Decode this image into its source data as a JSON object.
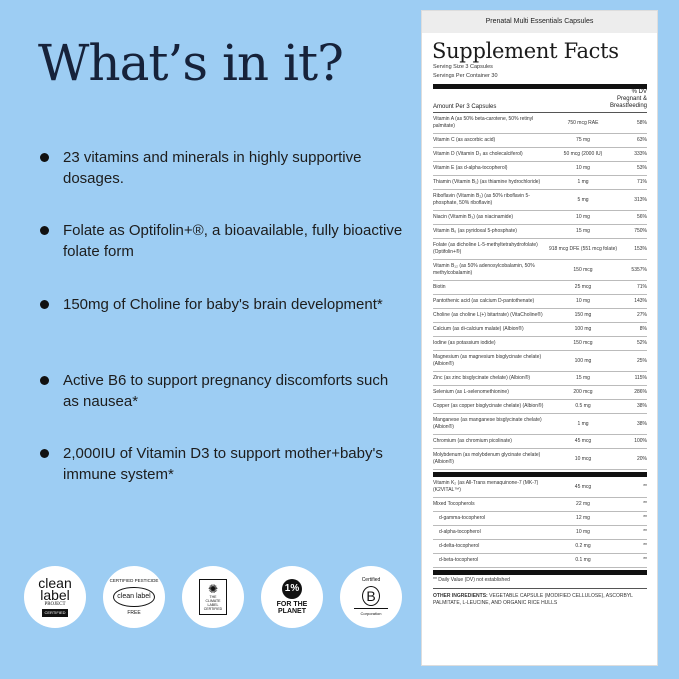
{
  "heading": "What’s in it?",
  "bullets": [
    "23 vitamins and minerals in highly supportive dosages.",
    "Folate as Optifolin+®, a bioavailable, fully bioactive folate form",
    "150mg of Choline for baby's brain development*",
    "Active B6 to support pregnancy discomforts such as nausea*",
    "2,000IU of Vitamin D3 to support mother+baby's immune system*"
  ],
  "logos": [
    {
      "name": "clean label project certified",
      "lines": [
        "clean",
        "label",
        "PROJECT",
        "CERTIFIED"
      ]
    },
    {
      "name": "certified pesticide free",
      "lines": [
        "CERTIFIED PESTICIDE",
        "clean label",
        "FREE"
      ]
    },
    {
      "name": "the climate label certified",
      "lines": [
        "THE",
        "CLIMATE",
        "LABEL",
        "CERTIFIED"
      ]
    },
    {
      "name": "1% for the planet",
      "lines": [
        "1%",
        "FOR THE",
        "PLANET"
      ]
    },
    {
      "name": "certified b corporation",
      "lines": [
        "Certified",
        "B",
        "Corporation"
      ]
    }
  ],
  "label": {
    "product": "Prenatal Multi Essentials Capsules",
    "title": "Supplement Facts",
    "serving_size": "Serving Size 3 Capsules",
    "servings_per_container": "Servings Per Container 30",
    "amount_header": "Amount Per 3 Capsules",
    "dv_header": [
      "% DV",
      "Pregnant &",
      "Breastfeeding"
    ],
    "rows": [
      [
        "Vitamin A (as 50% beta-carotene, 50% retinyl palmitate)",
        "750 mcg RAE",
        "58%"
      ],
      [
        "Vitamin C (as ascorbic acid)",
        "75 mg",
        "63%"
      ],
      [
        "Vitamin D (Vitamin D₃ as cholecalciferol)",
        "50 mcg (2000 IU)",
        "333%"
      ],
      [
        "Vitamin E (as d-alpha-tocopherol)",
        "10 mg",
        "53%"
      ],
      [
        "Thiamin (Vitamin B₁) (as thiamine hydrochloride)",
        "1 mg",
        "71%"
      ],
      [
        "Riboflavin (Vitamin B₂) (as 50% riboflavin 5-phosphate, 50% riboflavin)",
        "5 mg",
        "313%"
      ],
      [
        "Niacin (Vitamin B₃) (as niacinamide)",
        "10 mg",
        "56%"
      ],
      [
        "Vitamin B₆ (as pyridoxal 5-phosphate)",
        "15 mg",
        "750%"
      ],
      [
        "Folate (as dicholine L-5-methyltetrahydrofolate) (Optifolin+®)",
        "918 mcg DFE (551 mcg folate)",
        "153%"
      ],
      [
        "Vitamin B₁₂ (as 50% adenosylcobalamin, 50% methylcobalamin)",
        "150 mcg",
        "5357%"
      ],
      [
        "Biotin",
        "25 mcg",
        "71%"
      ],
      [
        "Pantothenic acid (as calcium D-pantothenate)",
        "10 mg",
        "143%"
      ],
      [
        "Choline (as choline L(+) bitartrate) (VitaCholine®)",
        "150 mg",
        "27%"
      ],
      [
        "Calcium (as di-calcium malate) (Albion®)",
        "100 mg",
        "8%"
      ],
      [
        "Iodine (as potassium iodide)",
        "150 mcg",
        "52%"
      ],
      [
        "Magnesium (as magnesium bisglycinate chelate) (Albion®)",
        "100 mg",
        "25%"
      ],
      [
        "Zinc (as zinc bisglycinate chelate) (Albion®)",
        "15 mg",
        "115%"
      ],
      [
        "Selenium (as L-selenomethionine)",
        "200 mcg",
        "286%"
      ],
      [
        "Copper (as copper bisglycinate chelate) (Albion®)",
        "0.5 mg",
        "38%"
      ],
      [
        "Manganese (as manganese bisglycinate chelate) (Albion®)",
        "1 mg",
        "38%"
      ],
      [
        "Chromium (as chromium picolinate)",
        "45 mcg",
        "100%"
      ],
      [
        "Molybdenum (as molybdenum glycinate chelate) (Albion®)",
        "10 mcg",
        "20%"
      ]
    ],
    "rows2": [
      [
        "Vitamin K₂ (as All-Trans menaquinone-7 (MK-7) (K2VITAL™)",
        "45 mcg",
        "**"
      ],
      [
        "Mixed Tocopherols",
        "22 mg",
        "**"
      ],
      [
        "d-gamma-tocopherol",
        "12 mg",
        "**"
      ],
      [
        "d-alpha-tocopherol",
        "10 mg",
        "**"
      ],
      [
        "d-delta-tocopherol",
        "0.2 mg",
        "**"
      ],
      [
        "d-beta-tocopherol",
        "0.1 mg",
        "**"
      ]
    ],
    "footnote": "** Daily Value (DV) not established",
    "other_label": "OTHER INGREDIENTS:",
    "other_text": " VEGETABLE CAPSULE (MODIFIED CELLULOSE), ASCORBYL PALMITATE, L-LEUCINE, AND ORGANIC RICE HULLS"
  },
  "colors": {
    "background": "#9dcdf3",
    "text": "#1d1d1d",
    "heading": "#16223a"
  }
}
